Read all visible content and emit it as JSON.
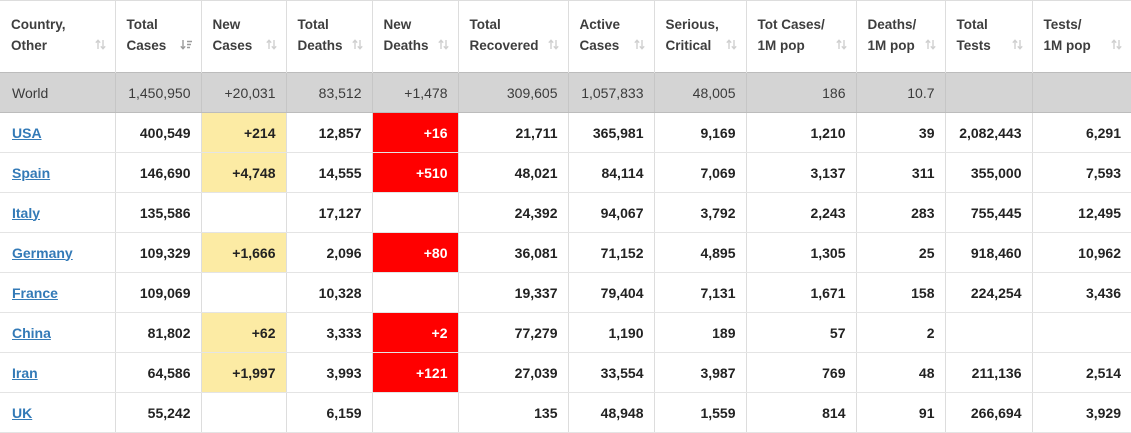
{
  "table": {
    "columns": [
      {
        "id": "country",
        "label": "Country,\nOther",
        "sort_icon": "sort-both-icon"
      },
      {
        "id": "total_cases",
        "label": "Total\nCases",
        "sort_icon": "sort-desc-icon"
      },
      {
        "id": "new_cases",
        "label": "New\nCases",
        "sort_icon": "sort-both-icon"
      },
      {
        "id": "total_deaths",
        "label": "Total\nDeaths",
        "sort_icon": "sort-both-icon"
      },
      {
        "id": "new_deaths",
        "label": "New\nDeaths",
        "sort_icon": "sort-both-icon"
      },
      {
        "id": "total_recovered",
        "label": "Total\nRecovered",
        "sort_icon": "sort-both-icon"
      },
      {
        "id": "active_cases",
        "label": "Active\nCases",
        "sort_icon": "sort-both-icon"
      },
      {
        "id": "serious_critical",
        "label": "Serious,\nCritical",
        "sort_icon": "sort-both-icon"
      },
      {
        "id": "cases_per_1m",
        "label": "Tot Cases/\n1M pop",
        "sort_icon": "sort-both-icon"
      },
      {
        "id": "deaths_per_1m",
        "label": "Deaths/\n1M pop",
        "sort_icon": "sort-both-icon"
      },
      {
        "id": "total_tests",
        "label": "Total\nTests",
        "sort_icon": "sort-both-icon"
      },
      {
        "id": "tests_per_1m",
        "label": "Tests/\n1M pop",
        "sort_icon": "sort-both-icon"
      }
    ],
    "world_row": {
      "country": "World",
      "total_cases": "1,450,950",
      "new_cases": "+20,031",
      "total_deaths": "83,512",
      "new_deaths": "+1,478",
      "total_recovered": "309,605",
      "active_cases": "1,057,833",
      "serious_critical": "48,005",
      "cases_per_1m": "186",
      "deaths_per_1m": "10.7",
      "total_tests": "",
      "tests_per_1m": ""
    },
    "rows": [
      {
        "country": "USA",
        "total_cases": "400,549",
        "new_cases": "+214",
        "total_deaths": "12,857",
        "new_deaths": "+16",
        "total_recovered": "21,711",
        "active_cases": "365,981",
        "serious_critical": "9,169",
        "cases_per_1m": "1,210",
        "deaths_per_1m": "39",
        "total_tests": "2,082,443",
        "tests_per_1m": "6,291"
      },
      {
        "country": "Spain",
        "total_cases": "146,690",
        "new_cases": "+4,748",
        "total_deaths": "14,555",
        "new_deaths": "+510",
        "total_recovered": "48,021",
        "active_cases": "84,114",
        "serious_critical": "7,069",
        "cases_per_1m": "3,137",
        "deaths_per_1m": "311",
        "total_tests": "355,000",
        "tests_per_1m": "7,593"
      },
      {
        "country": "Italy",
        "total_cases": "135,586",
        "new_cases": "",
        "total_deaths": "17,127",
        "new_deaths": "",
        "total_recovered": "24,392",
        "active_cases": "94,067",
        "serious_critical": "3,792",
        "cases_per_1m": "2,243",
        "deaths_per_1m": "283",
        "total_tests": "755,445",
        "tests_per_1m": "12,495"
      },
      {
        "country": "Germany",
        "total_cases": "109,329",
        "new_cases": "+1,666",
        "total_deaths": "2,096",
        "new_deaths": "+80",
        "total_recovered": "36,081",
        "active_cases": "71,152",
        "serious_critical": "4,895",
        "cases_per_1m": "1,305",
        "deaths_per_1m": "25",
        "total_tests": "918,460",
        "tests_per_1m": "10,962"
      },
      {
        "country": "France",
        "total_cases": "109,069",
        "new_cases": "",
        "total_deaths": "10,328",
        "new_deaths": "",
        "total_recovered": "19,337",
        "active_cases": "79,404",
        "serious_critical": "7,131",
        "cases_per_1m": "1,671",
        "deaths_per_1m": "158",
        "total_tests": "224,254",
        "tests_per_1m": "3,436"
      },
      {
        "country": "China",
        "total_cases": "81,802",
        "new_cases": "+62",
        "total_deaths": "3,333",
        "new_deaths": "+2",
        "total_recovered": "77,279",
        "active_cases": "1,190",
        "serious_critical": "189",
        "cases_per_1m": "57",
        "deaths_per_1m": "2",
        "total_tests": "",
        "tests_per_1m": ""
      },
      {
        "country": "Iran",
        "total_cases": "64,586",
        "new_cases": "+1,997",
        "total_deaths": "3,993",
        "new_deaths": "+121",
        "total_recovered": "27,039",
        "active_cases": "33,554",
        "serious_critical": "3,987",
        "cases_per_1m": "769",
        "deaths_per_1m": "48",
        "total_tests": "211,136",
        "tests_per_1m": "2,514"
      },
      {
        "country": "UK",
        "total_cases": "55,242",
        "new_cases": "",
        "total_deaths": "6,159",
        "new_deaths": "",
        "total_recovered": "135",
        "active_cases": "48,948",
        "serious_critical": "1,559",
        "cases_per_1m": "814",
        "deaths_per_1m": "91",
        "total_tests": "266,694",
        "tests_per_1m": "3,929"
      }
    ],
    "colors": {
      "highlight_new_cases_bg": "#FCEBA4",
      "highlight_new_deaths_bg": "#FF0000",
      "highlight_new_deaths_text": "#FFFFFF",
      "world_row_bg": "#D4D4D4",
      "link_color": "#337AB7",
      "header_text": "#3E3E3E",
      "number_text": "#222222"
    }
  }
}
